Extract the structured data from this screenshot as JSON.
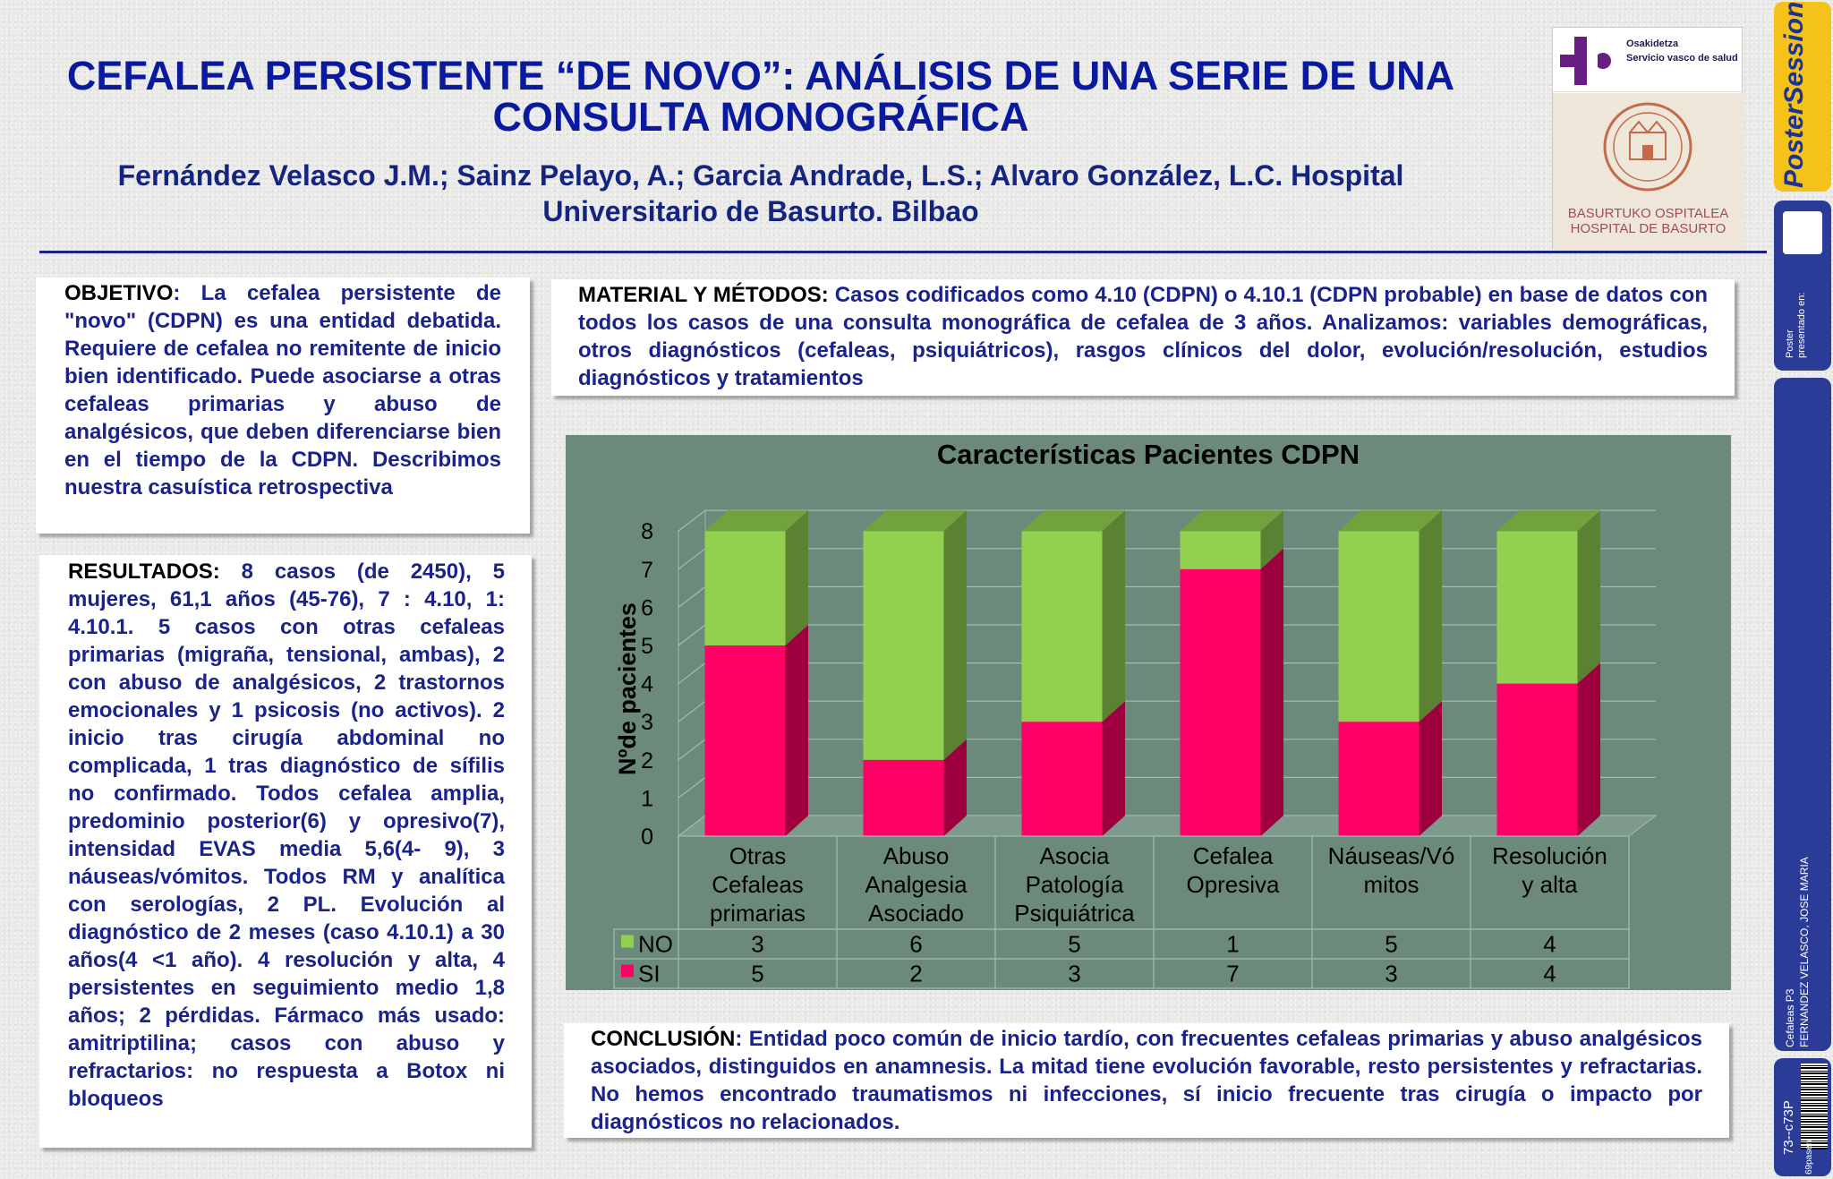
{
  "header": {
    "title_line1": "CEFALEA PERSISTENTE “DE NOVO”: ANÁLISIS DE UNA SERIE DE UNA",
    "title_line2": "CONSULTA MONOGRÁFICA",
    "authors_line1": "Fernández Velasco J.M.; Sainz Pelayo, A.; Garcia Andrade, L.S.; Alvaro González, L.C. Hospital",
    "authors_line2": "Universitario de Basurto.  Bilbao"
  },
  "logos": {
    "osakidetza_line1": "Osakidetza",
    "osakidetza_line2": "Servicio vasco de salud",
    "basurto_line1": "BASURTUKO OSPITALEA",
    "basurto_line2": "HOSPITAL  DE  BASURTO"
  },
  "sidebar": {
    "brand": "PosterSessionOnline",
    "presented": "Poster presentado en:",
    "session": "Cefaleas P3",
    "author": "FERNANDEZ VELASCO, JOSE MARIA",
    "code": "73--c73P",
    "id": "69pasen"
  },
  "objetivo": {
    "label": "OBJETIVO",
    "text": ": La cefalea persistente de \"novo\" (CDPN) es una entidad debatida. Requiere de cefalea no remitente de inicio bien identificado. Puede asociarse a otras cefaleas primarias y abuso de analgésicos, que deben diferenciarse bien en el tiempo de la CDPN. Describimos nuestra casuística retrospectiva"
  },
  "resultados": {
    "label": "RESULTADOS:",
    "text": " 8 casos (de 2450), 5 mujeres, 61,1 años (45-76), 7 : 4.10, 1: 4.10.1. 5 casos con otras cefaleas primarias (migraña, tensional, ambas), 2 con abuso de analgésicos, 2 trastornos emocionales y 1 psicosis (no activos). 2 inicio tras cirugía abdominal no complicada, 1 tras diagnóstico de sífilis no confirmado. Todos cefalea amplia, predominio posterior(6) y opresivo(7), intensidad EVAS media 5,6(4- 9), 3 náuseas/vómitos. Todos RM y analítica con serologías, 2 PL. Evolución al diagnóstico de 2 meses (caso 4.10.1) a 30 años(4 <1 año). 4 resolución y alta, 4 persistentes en seguimiento medio 1,8 años; 2 pérdidas. Fármaco más usado: amitriptilina; casos con abuso y refractarios: no respuesta a Botox ni bloqueos"
  },
  "metodos": {
    "label": "MATERIAL Y MÉTODOS:",
    "text": " Casos codificados como 4.10 (CDPN) o 4.10.1 (CDPN probable) en base de datos con todos los casos de una consulta monográfica de cefalea de 3 años. Analizamos: variables demográficas, otros diagnósticos (cefaleas, psiquiátricos), rasgos clínicos del dolor, evolución/resolución, estudios diagnósticos y tratamientos"
  },
  "conclusion": {
    "label": "CONCLUSIÓN",
    "text": ": Entidad poco común de inicio tardío, con frecuentes cefaleas primarias y abuso analgésicos asociados, distinguidos en anamnesis. La mitad tiene evolución favorable, resto persistentes y refractarias. No hemos encontrado traumatismos ni infecciones, sí inicio frecuente tras cirugía o impacto por diagnósticos no relacionados."
  },
  "chart_data": {
    "type": "bar",
    "stacked": true,
    "three_d": true,
    "title": "Características Pacientes CDPN",
    "ylabel": "Nºde pacientes",
    "xlabel": "",
    "ylim": [
      0,
      8
    ],
    "yticks": [
      "0",
      "1",
      "2",
      "3",
      "4",
      "5",
      "6",
      "7",
      "8"
    ],
    "categories": [
      [
        "Otras",
        "Cefaleas",
        "primarias"
      ],
      [
        "Abuso",
        "Analgesia",
        "Asociado"
      ],
      [
        "Asocia",
        "Patología",
        "Psiquiátrica"
      ],
      [
        "Cefalea",
        "Opresiva"
      ],
      [
        "Náuseas/Vó",
        "mitos"
      ],
      [
        "Resolución",
        "y alta"
      ]
    ],
    "series": [
      {
        "name": "SI",
        "color": "#ff0066",
        "values": [
          5,
          2,
          3,
          7,
          3,
          4
        ]
      },
      {
        "name": "NO",
        "color": "#92d050",
        "values": [
          3,
          6,
          5,
          1,
          5,
          4
        ]
      }
    ],
    "data_table": true,
    "grid": true
  }
}
